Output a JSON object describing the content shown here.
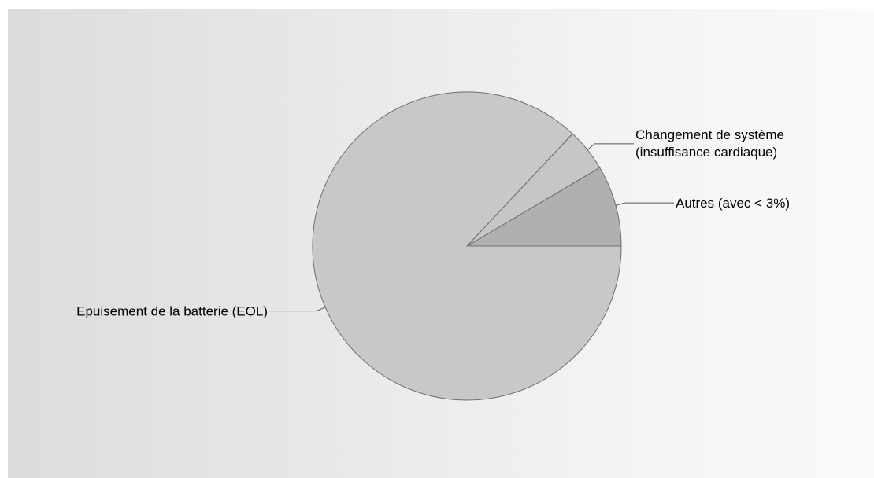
{
  "chart_data": {
    "type": "pie",
    "title": "",
    "slices": [
      {
        "label": "Autres (avec < 3%)",
        "value": 8.5,
        "color": "#b0b0b0",
        "label_lines": [
          "Autres (avec < 3%)"
        ]
      },
      {
        "label": "Changement de système (insuffisance cardiaque)",
        "value": 4.5,
        "color": "#c6c6c6",
        "label_lines": [
          "Changement de système",
          "(insuffisance cardiaque)"
        ]
      },
      {
        "label": "Epuisement de la batterie (EOL)",
        "value": 87,
        "color": "#c8c8c8",
        "label_lines": [
          "Epuisement de la batterie (EOL)"
        ]
      }
    ],
    "start_angle_deg": 0,
    "direction": "counterclockwise",
    "legend": "none",
    "label_style": "outside-with-leader-lines"
  }
}
